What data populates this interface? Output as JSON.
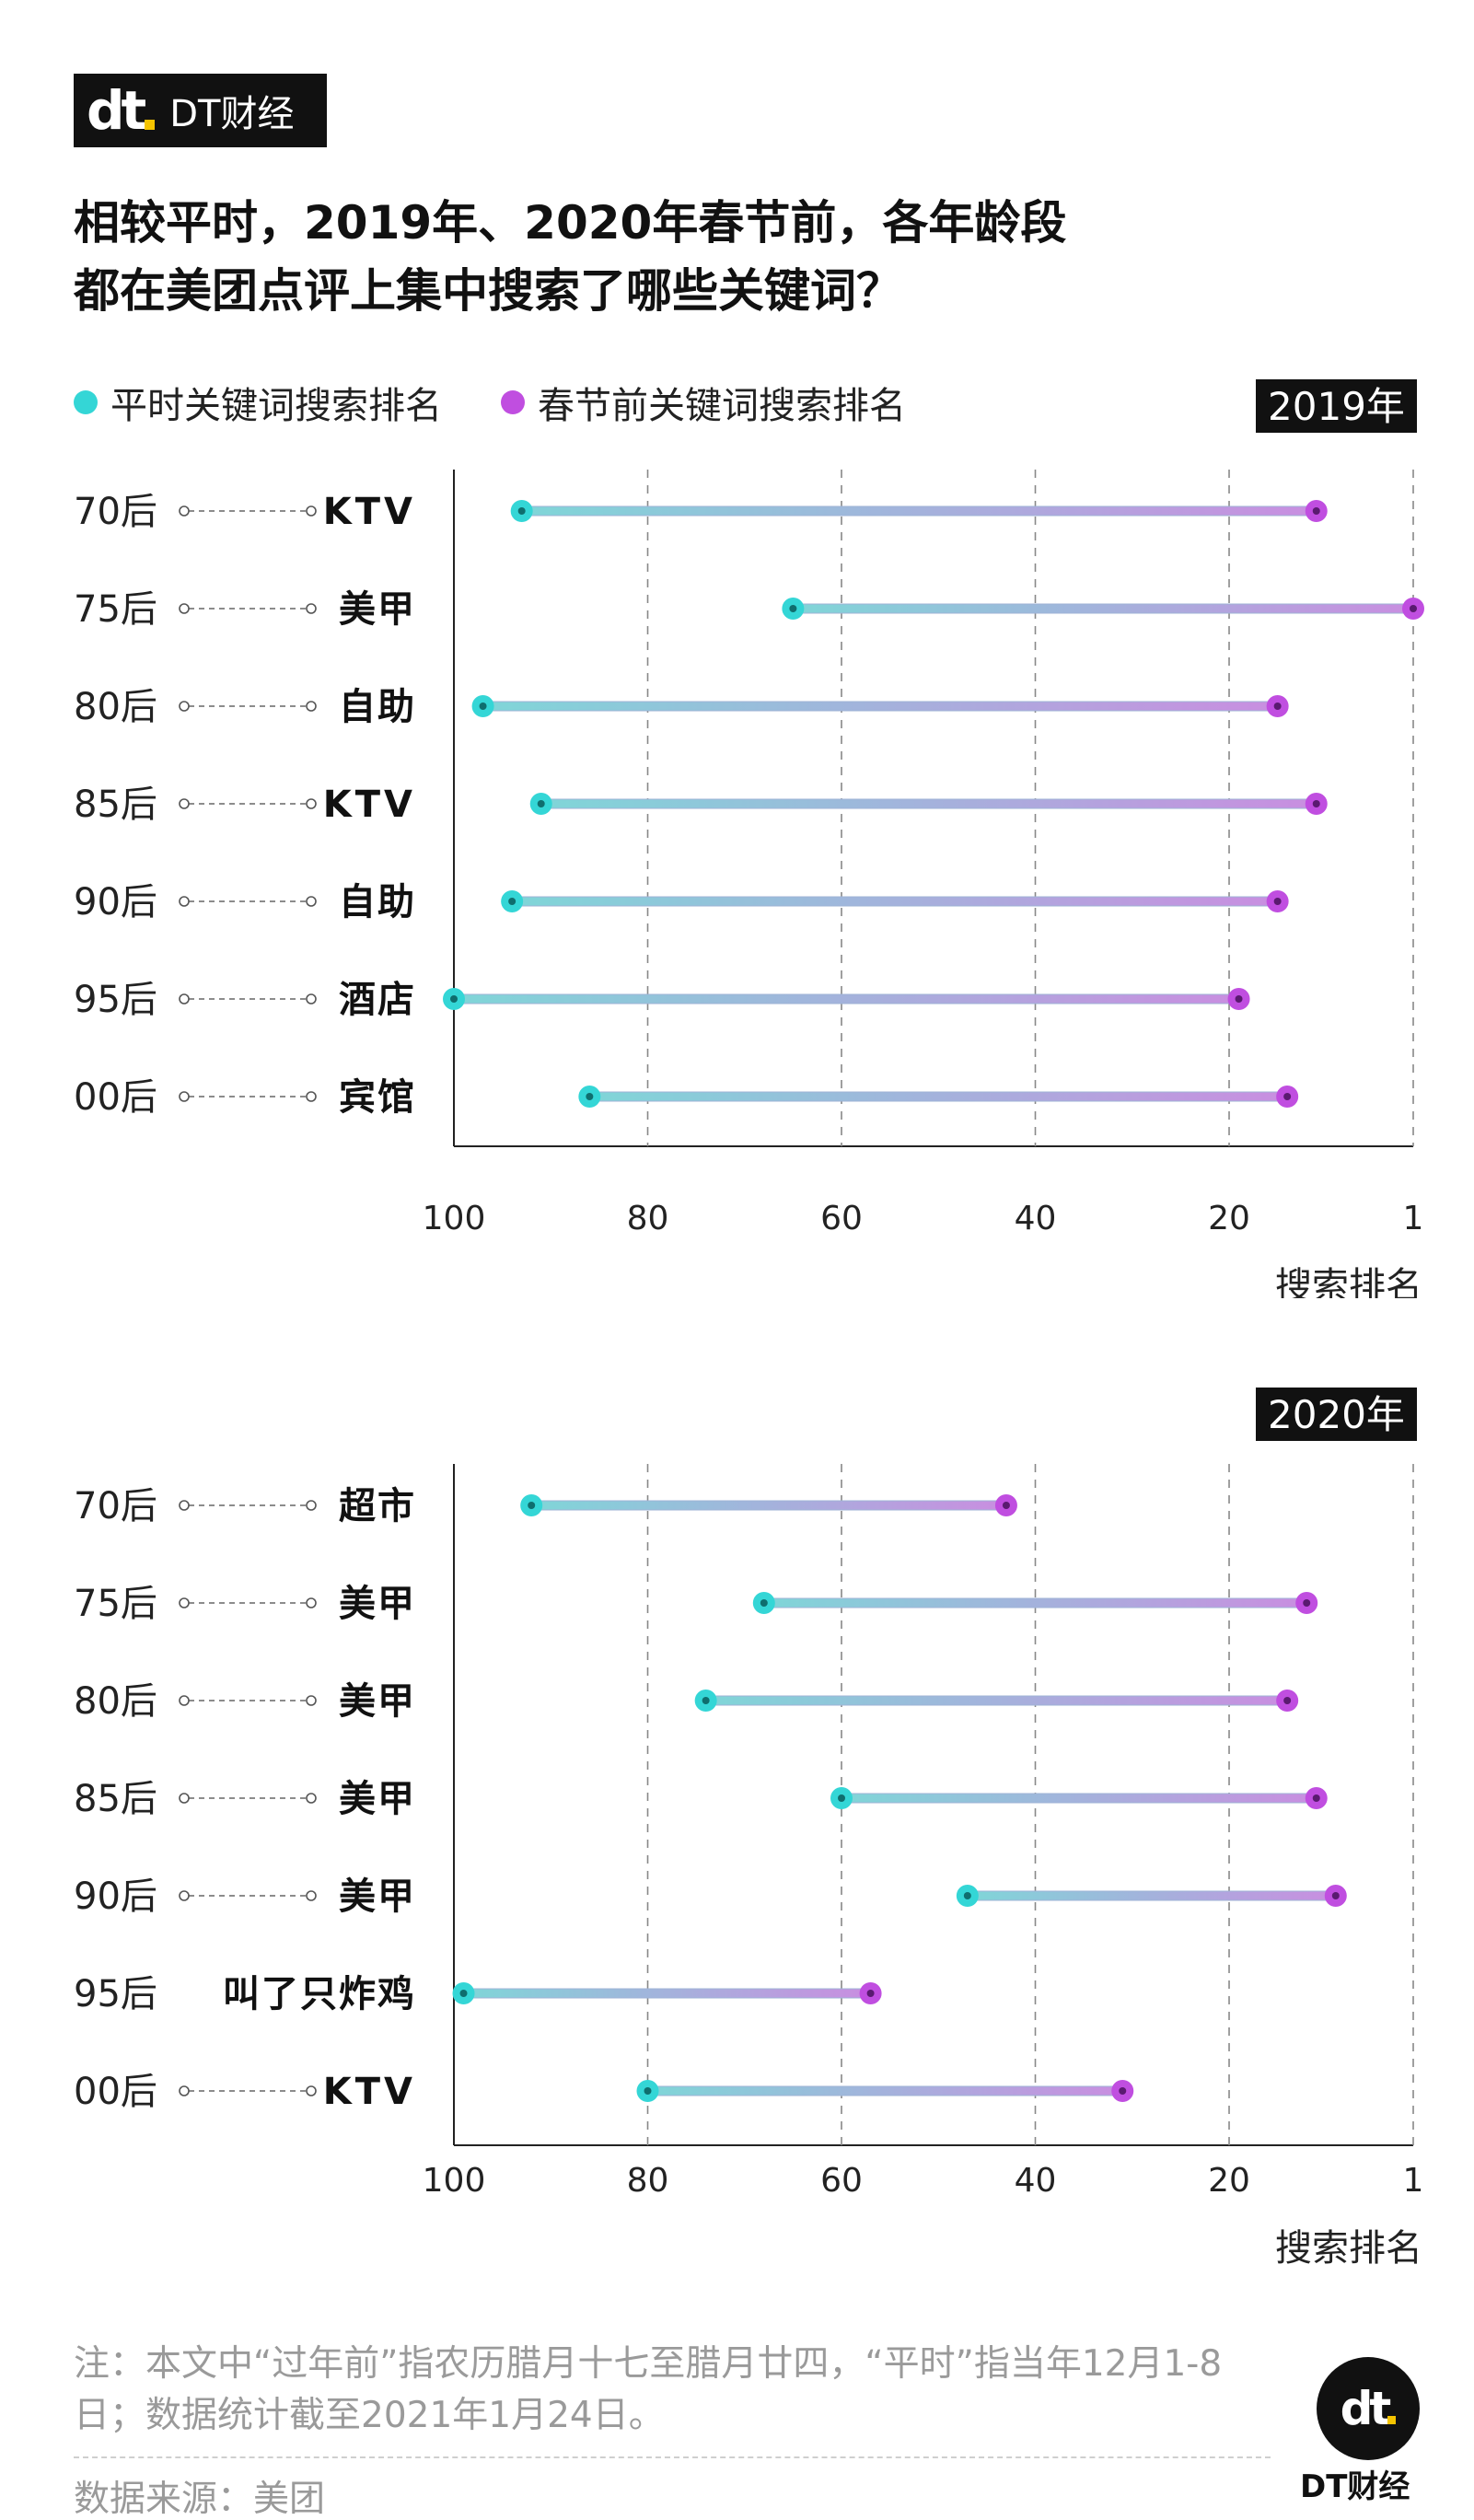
{
  "brand": {
    "logo_mark": "dt",
    "name": "DT财经"
  },
  "title_lines": [
    "相较平时，2019年、2020年春节前，各年龄段",
    "都在美团点评上集中搜索了哪些关键词？"
  ],
  "legend": {
    "normal": {
      "label": "平时关键词搜索排名",
      "color": "#34d6d6"
    },
    "festival": {
      "label": "春节前关键词搜索排名",
      "color": "#c04ee0"
    }
  },
  "chart_data": [
    {
      "type": "dumbbell",
      "year_label": "2019年",
      "xlabel": "搜索排名",
      "x_ticks": [
        100,
        80,
        60,
        40,
        20,
        1
      ],
      "xlim": [
        100,
        1
      ],
      "rows": [
        {
          "age": "70后",
          "keyword": "KTV",
          "normal": 93,
          "festival": 11
        },
        {
          "age": "75后",
          "keyword": "美甲",
          "normal": 65,
          "festival": 1
        },
        {
          "age": "80后",
          "keyword": "自助",
          "normal": 97,
          "festival": 15
        },
        {
          "age": "85后",
          "keyword": "KTV",
          "normal": 91,
          "festival": 11
        },
        {
          "age": "90后",
          "keyword": "自助",
          "normal": 94,
          "festival": 15
        },
        {
          "age": "95后",
          "keyword": "酒店",
          "normal": 100,
          "festival": 19
        },
        {
          "age": "00后",
          "keyword": "宾馆",
          "normal": 86,
          "festival": 14
        }
      ]
    },
    {
      "type": "dumbbell",
      "year_label": "2020年",
      "xlabel": "搜索排名",
      "x_ticks": [
        100,
        80,
        60,
        40,
        20,
        1
      ],
      "xlim": [
        100,
        1
      ],
      "rows": [
        {
          "age": "70后",
          "keyword": "超市",
          "normal": 92,
          "festival": 43
        },
        {
          "age": "75后",
          "keyword": "美甲",
          "normal": 68,
          "festival": 12
        },
        {
          "age": "80后",
          "keyword": "美甲",
          "normal": 74,
          "festival": 14
        },
        {
          "age": "85后",
          "keyword": "美甲",
          "normal": 60,
          "festival": 11
        },
        {
          "age": "90后",
          "keyword": "美甲",
          "normal": 47,
          "festival": 9
        },
        {
          "age": "95后",
          "keyword": "叫了只炸鸡",
          "normal": 99,
          "festival": 57
        },
        {
          "age": "00后",
          "keyword": "KTV",
          "normal": 80,
          "festival": 31
        }
      ]
    }
  ],
  "note": "注：本文中“过年前”指农历腊月十七至腊月廿四，“平时”指当年12月1-8日；数据统计截至2021年1月24日。",
  "source": "数据来源：美团"
}
